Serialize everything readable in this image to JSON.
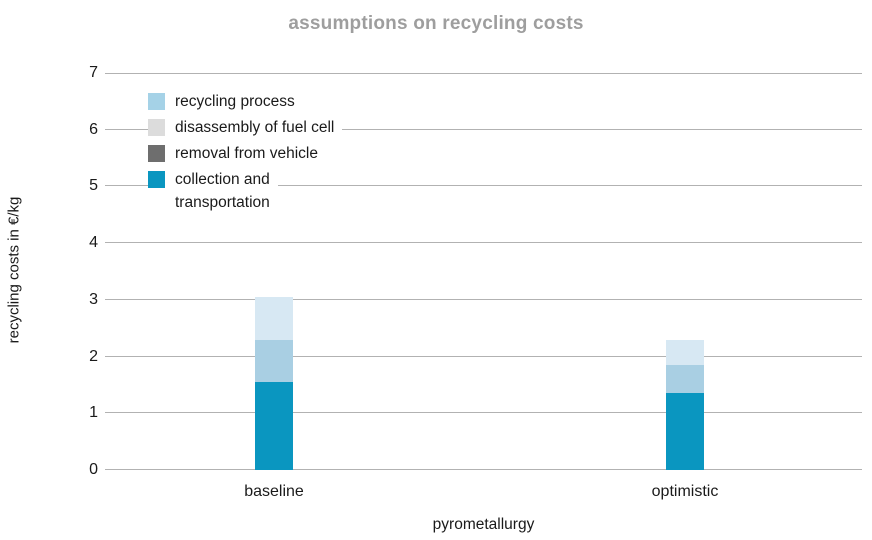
{
  "title": "assumptions on recycling costs",
  "axes": {
    "y_label": "recycling costs in €/kg",
    "x_label": "pyrometallurgy",
    "y_ticks": [
      0,
      1,
      2,
      3,
      4,
      5,
      6,
      7
    ],
    "ylim": [
      0,
      7
    ]
  },
  "legend": {
    "items": [
      {
        "label": "recycling process",
        "color": "#a5d2e7"
      },
      {
        "label": "disassembly of fuel cell",
        "color": "#dcdcdc"
      },
      {
        "label": "removal from vehicle",
        "color": "#6e6e6e"
      },
      {
        "label": "collection and\ntransportation",
        "color": "#0a96c0"
      }
    ]
  },
  "colors": {
    "grid": "#b2b2b2",
    "title": "#9e9e9e",
    "text": "#1a1a1a",
    "background": "#ffffff"
  },
  "chart_data": {
    "type": "bar",
    "stacked": true,
    "title": "assumptions on recycling costs",
    "xlabel": "pyrometallurgy",
    "ylabel": "recycling costs in €/kg",
    "ylim": [
      0,
      7
    ],
    "grid": true,
    "legend_position": "upper-left-inside",
    "categories": [
      "baseline",
      "optimistic"
    ],
    "stack_order_bottom_to_top": [
      "collection and transportation",
      "removal from vehicle",
      "recycling process",
      "disassembly of fuel cell"
    ],
    "series": [
      {
        "name": "collection and transportation",
        "color": "#0a96c0",
        "values": [
          1.55,
          1.35
        ]
      },
      {
        "name": "removal from vehicle",
        "color": "#6e6e6e",
        "values": [
          0,
          0
        ]
      },
      {
        "name": "recycling process",
        "color": "#a9cfe3",
        "values": [
          0.75,
          0.5
        ]
      },
      {
        "name": "disassembly of fuel cell",
        "color": "#d7e8f3",
        "values": [
          0.75,
          0.45
        ]
      }
    ],
    "totals": [
      3.05,
      2.3
    ]
  }
}
